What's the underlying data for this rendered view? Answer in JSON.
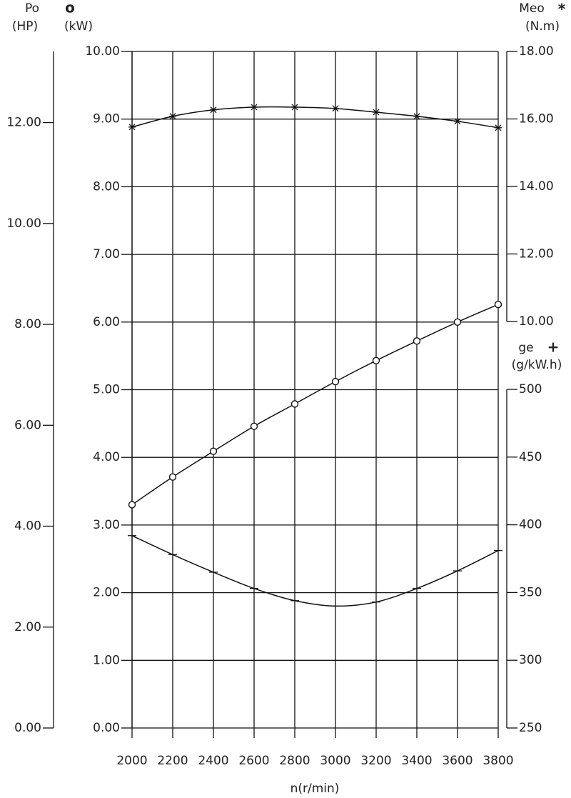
{
  "chart_data": {
    "type": "line",
    "x": [
      2000,
      2200,
      2400,
      2600,
      2800,
      3000,
      3200,
      3400,
      3600,
      3800
    ],
    "xlim": [
      2000,
      3800
    ],
    "xticks": [
      2000,
      2200,
      2400,
      2600,
      2800,
      3000,
      3200,
      3400,
      3600,
      3800
    ],
    "xlabel": "n(r/min)",
    "grid": true,
    "axes": [
      {
        "name": "Po",
        "unit": "(HP)",
        "lim": [
          0,
          13.41
        ],
        "ticks": [
          {
            "value": 0,
            "label": "0.00"
          },
          {
            "value": 2,
            "label": "2.00"
          },
          {
            "value": 4,
            "label": "4.00"
          },
          {
            "value": 6,
            "label": "6.00"
          },
          {
            "value": 8,
            "label": "8.00"
          },
          {
            "value": 10,
            "label": "10.00"
          },
          {
            "value": 12,
            "label": "12.00"
          }
        ]
      },
      {
        "symbol": "o",
        "unit": "(kW)",
        "lim": [
          0,
          10
        ],
        "ticks": [
          {
            "value": 0,
            "label": "0.00"
          },
          {
            "value": 1,
            "label": "1.00"
          },
          {
            "value": 2,
            "label": "2.00"
          },
          {
            "value": 3,
            "label": "3.00"
          },
          {
            "value": 4,
            "label": "4.00"
          },
          {
            "value": 5,
            "label": "5.00"
          },
          {
            "value": 6,
            "label": "6.00"
          },
          {
            "value": 7,
            "label": "7.00"
          },
          {
            "value": 8,
            "label": "8.00"
          },
          {
            "value": 9,
            "label": "9.00"
          },
          {
            "value": 10,
            "label": "10.00"
          }
        ]
      },
      {
        "name": "Meo",
        "symbol": "*",
        "unit": "(N.m)",
        "lim": [
          10,
          18
        ],
        "ticks": [
          {
            "value": 10,
            "label": "10.00"
          },
          {
            "value": 12,
            "label": "12.00"
          },
          {
            "value": 14,
            "label": "14.00"
          },
          {
            "value": 16,
            "label": "16.00"
          },
          {
            "value": 18,
            "label": "18.00"
          }
        ]
      },
      {
        "name": "ge",
        "symbol": "+",
        "unit": "(g/kW.h)",
        "lim": [
          250,
          500
        ],
        "ticks": [
          250,
          300,
          350,
          400,
          450,
          500
        ]
      }
    ],
    "series": [
      {
        "axis": 1,
        "marker": "circle",
        "color": "#111",
        "values": [
          3.3,
          3.71,
          4.09,
          4.46,
          4.79,
          5.12,
          5.43,
          5.72,
          6.0,
          6.26
        ]
      },
      {
        "axis": 2,
        "marker": "star",
        "color": "#111",
        "values": [
          15.76,
          16.08,
          16.27,
          16.35,
          16.35,
          16.31,
          16.2,
          16.08,
          15.93,
          15.74
        ]
      },
      {
        "axis": 3,
        "marker": "tick",
        "color": "#111",
        "values": [
          392,
          378,
          365,
          353,
          344,
          340,
          343,
          353,
          366,
          381
        ]
      }
    ]
  }
}
